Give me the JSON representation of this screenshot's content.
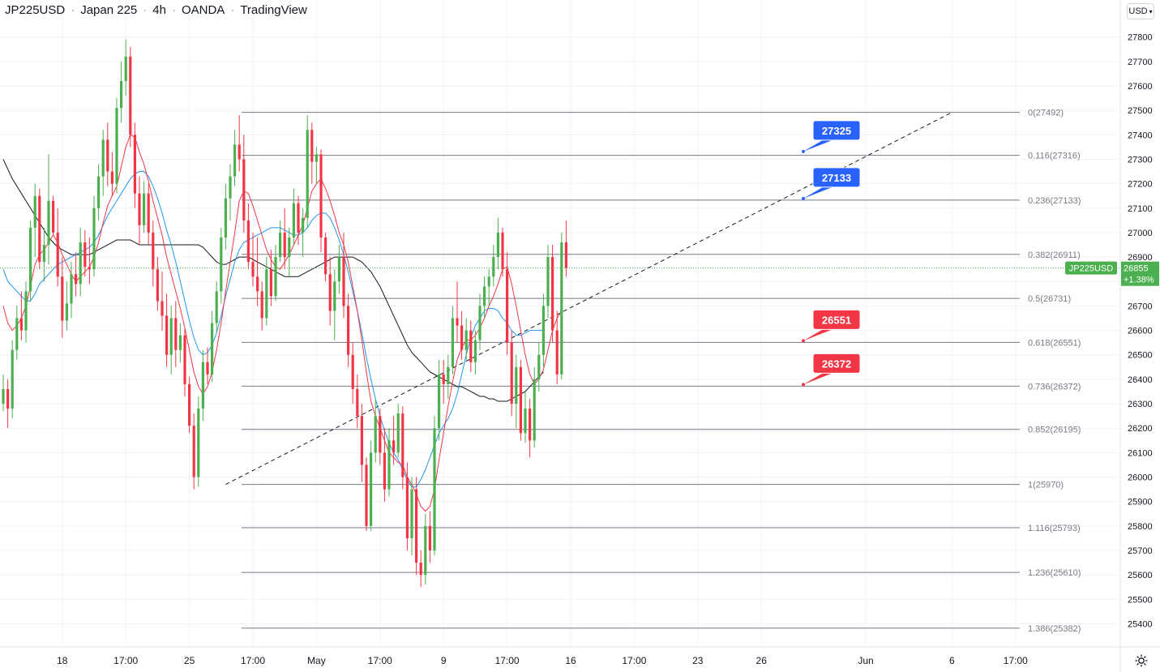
{
  "header": {
    "symbol": "JP225USD",
    "name": "Japan 225",
    "interval": "4h",
    "broker": "OANDA",
    "source": "TradingView"
  },
  "currency_button": {
    "label": "USD",
    "icon": "chevron-down-icon"
  },
  "settings_icon": "gear-icon",
  "colors": {
    "up": "#4caf50",
    "down": "#f23645",
    "sma_fast": "#f23645",
    "sma_mid": "#2196f3",
    "sma_slow": "#131722",
    "label_blue": "#2962ff",
    "label_red": "#f23645",
    "price_badge": "#4caf50"
  },
  "chart_data": {
    "type": "candlestick",
    "y_ticks": [
      27800,
      27700,
      27600,
      27500,
      27400,
      27300,
      27200,
      27100,
      27000,
      26900,
      26800,
      26700,
      26600,
      26500,
      26400,
      26300,
      26200,
      26100,
      26000,
      25900,
      25800,
      25700,
      25600,
      25500,
      25400
    ],
    "ylim": [
      25332,
      27852
    ],
    "x_ticks": [
      {
        "label": "18",
        "bar": 13
      },
      {
        "label": "17:00",
        "bar": 27
      },
      {
        "label": "25",
        "bar": 41
      },
      {
        "label": "17:00",
        "bar": 55
      },
      {
        "label": "May",
        "bar": 69
      },
      {
        "label": "17:00",
        "bar": 83
      },
      {
        "label": "9",
        "bar": 97
      },
      {
        "label": "17:00",
        "bar": 111
      },
      {
        "label": "16",
        "bar": 125
      },
      {
        "label": "17:00",
        "bar": 139
      },
      {
        "label": "23",
        "bar": 153
      },
      {
        "label": "26",
        "bar": 167
      },
      {
        "label": "Jun",
        "bar": 190
      },
      {
        "label": "6",
        "bar": 209
      },
      {
        "label": "17:00",
        "bar": 223
      }
    ],
    "last_price": {
      "symbol": "JP225USD",
      "value": "26855",
      "change": "+1.38%"
    },
    "fibonacci": [
      {
        "label": "0(27492)",
        "value": 27492
      },
      {
        "label": "0.116(27316)",
        "value": 27316
      },
      {
        "label": "0.236(27133)",
        "value": 27133
      },
      {
        "label": "0.382(26911)",
        "value": 26911
      },
      {
        "label": "0.5(26731)",
        "value": 26731
      },
      {
        "label": "0.618(26551)",
        "value": 26551
      },
      {
        "label": "0.736(26372)",
        "value": 26372
      },
      {
        "label": "0.852(26195)",
        "value": 26195
      },
      {
        "label": "1(25970)",
        "value": 25970
      },
      {
        "label": "1.116(25793)",
        "value": 25793
      },
      {
        "label": "1.236(25610)",
        "value": 25610
      },
      {
        "label": "1.386(25382)",
        "value": 25382
      }
    ],
    "callouts": [
      {
        "text": "27325",
        "value": 27325,
        "color": "blue"
      },
      {
        "text": "27133",
        "value": 27133,
        "color": "blue"
      },
      {
        "text": "26551",
        "value": 26551,
        "color": "red"
      },
      {
        "text": "26372",
        "value": 26372,
        "color": "red"
      }
    ],
    "trendline": {
      "from": {
        "bar": 49,
        "value": 25970
      },
      "to": {
        "bar": 209,
        "value": 27492
      }
    },
    "candles": [
      [
        26300,
        26420,
        26270,
        26360
      ],
      [
        26360,
        26400,
        26200,
        26280
      ],
      [
        26280,
        26560,
        26240,
        26520
      ],
      [
        26520,
        26700,
        26480,
        26650
      ],
      [
        26650,
        26760,
        26560,
        26600
      ],
      [
        26600,
        26800,
        26550,
        26760
      ],
      [
        26760,
        27050,
        26720,
        27020
      ],
      [
        27020,
        27200,
        26900,
        27150
      ],
      [
        27150,
        27180,
        26850,
        26880
      ],
      [
        26880,
        27020,
        26800,
        26950
      ],
      [
        26950,
        27320,
        26870,
        27130
      ],
      [
        27130,
        27150,
        26990,
        27000
      ],
      [
        27000,
        27100,
        26780,
        26820
      ],
      [
        26820,
        26900,
        26570,
        26640
      ],
      [
        26640,
        26800,
        26600,
        26710
      ],
      [
        26710,
        26880,
        26650,
        26830
      ],
      [
        26830,
        26920,
        26740,
        26790
      ],
      [
        26790,
        27020,
        26740,
        26960
      ],
      [
        26960,
        27010,
        26820,
        26860
      ],
      [
        26860,
        26980,
        26790,
        26850
      ],
      [
        26850,
        27150,
        26820,
        27100
      ],
      [
        27100,
        27280,
        27050,
        27230
      ],
      [
        27230,
        27420,
        27150,
        27380
      ],
      [
        27380,
        27450,
        27190,
        27250
      ],
      [
        27250,
        27330,
        27150,
        27200
      ],
      [
        27200,
        27550,
        27160,
        27510
      ],
      [
        27510,
        27700,
        27450,
        27620
      ],
      [
        27620,
        27790,
        27560,
        27720
      ],
      [
        27720,
        27760,
        27350,
        27400
      ],
      [
        27400,
        27450,
        27100,
        27160
      ],
      [
        27160,
        27230,
        26950,
        27030
      ],
      [
        27030,
        27210,
        27000,
        27160
      ],
      [
        27160,
        27200,
        26950,
        27000
      ],
      [
        27000,
        27050,
        26780,
        26850
      ],
      [
        26850,
        26900,
        26680,
        26720
      ],
      [
        26720,
        26840,
        26600,
        26660
      ],
      [
        26660,
        26750,
        26450,
        26500
      ],
      [
        26500,
        26700,
        26420,
        26650
      ],
      [
        26650,
        26720,
        26450,
        26520
      ],
      [
        26520,
        26630,
        26470,
        26580
      ],
      [
        26580,
        26610,
        26330,
        26380
      ],
      [
        26380,
        26410,
        26180,
        26210
      ],
      [
        26210,
        26260,
        25950,
        26000
      ],
      [
        26000,
        26330,
        25960,
        26280
      ],
      [
        26280,
        26520,
        26230,
        26470
      ],
      [
        26470,
        26530,
        26380,
        26420
      ],
      [
        26420,
        26680,
        26390,
        26630
      ],
      [
        26630,
        26800,
        26590,
        26760
      ],
      [
        26760,
        27020,
        26710,
        26980
      ],
      [
        26980,
        27200,
        26930,
        27140
      ],
      [
        27140,
        27280,
        27050,
        27230
      ],
      [
        27230,
        27420,
        27190,
        27360
      ],
      [
        27360,
        27480,
        27250,
        27300
      ],
      [
        27300,
        27400,
        27000,
        27050
      ],
      [
        27050,
        27120,
        26850,
        26880
      ],
      [
        26880,
        27000,
        26780,
        26820
      ],
      [
        26820,
        26980,
        26700,
        26760
      ],
      [
        26760,
        26800,
        26600,
        26650
      ],
      [
        26650,
        26900,
        26620,
        26850
      ],
      [
        26850,
        26930,
        26700,
        26740
      ],
      [
        26740,
        26950,
        26720,
        26900
      ],
      [
        26900,
        27050,
        26880,
        27000
      ],
      [
        27000,
        27100,
        26850,
        26900
      ],
      [
        26900,
        27020,
        26820,
        26980
      ],
      [
        26980,
        27180,
        26950,
        27120
      ],
      [
        27120,
        27150,
        26950,
        27000
      ],
      [
        27000,
        27100,
        26900,
        27060
      ],
      [
        27060,
        27480,
        27020,
        27420
      ],
      [
        27420,
        27450,
        27200,
        27290
      ],
      [
        27290,
        27350,
        27200,
        27320
      ],
      [
        27320,
        27340,
        26920,
        26980
      ],
      [
        26980,
        27000,
        26800,
        26830
      ],
      [
        26830,
        26900,
        26620,
        26680
      ],
      [
        26680,
        26850,
        26560,
        26800
      ],
      [
        26800,
        26950,
        26750,
        26900
      ],
      [
        26900,
        27000,
        26650,
        26700
      ],
      [
        26700,
        26750,
        26450,
        26500
      ],
      [
        26500,
        26550,
        26300,
        26360
      ],
      [
        26360,
        26420,
        26200,
        26250
      ],
      [
        26250,
        26300,
        25980,
        26050
      ],
      [
        26050,
        26080,
        25780,
        25800
      ],
      [
        25800,
        26150,
        25780,
        26100
      ],
      [
        26100,
        26320,
        26060,
        26250
      ],
      [
        26250,
        26280,
        26050,
        26100
      ],
      [
        26100,
        26200,
        25900,
        25950
      ],
      [
        25950,
        26200,
        25920,
        26150
      ],
      [
        26150,
        26250,
        26050,
        26100
      ],
      [
        26100,
        26300,
        26080,
        26260
      ],
      [
        26260,
        26290,
        25950,
        26000
      ],
      [
        26000,
        26060,
        25700,
        25750
      ],
      [
        25750,
        26000,
        25680,
        25950
      ],
      [
        25950,
        26000,
        25600,
        25650
      ],
      [
        25650,
        25700,
        25550,
        25600
      ],
      [
        25600,
        25850,
        25560,
        25800
      ],
      [
        25800,
        25860,
        25650,
        25700
      ],
      [
        25700,
        26250,
        25680,
        26200
      ],
      [
        26200,
        26480,
        26150,
        26420
      ],
      [
        26420,
        26480,
        26300,
        26380
      ],
      [
        26380,
        26500,
        26320,
        26450
      ],
      [
        26450,
        26700,
        26420,
        26650
      ],
      [
        26650,
        26800,
        26550,
        26620
      ],
      [
        26620,
        26680,
        26480,
        26520
      ],
      [
        26520,
        26650,
        26480,
        26600
      ],
      [
        26600,
        26640,
        26430,
        26470
      ],
      [
        26470,
        26600,
        26420,
        26560
      ],
      [
        26560,
        26750,
        26520,
        26700
      ],
      [
        26700,
        26820,
        26650,
        26780
      ],
      [
        26780,
        26850,
        26700,
        26820
      ],
      [
        26820,
        26950,
        26780,
        26900
      ],
      [
        26900,
        27060,
        26850,
        27000
      ],
      [
        27000,
        27020,
        26820,
        26850
      ],
      [
        26850,
        26920,
        26500,
        26550
      ],
      [
        26550,
        26600,
        26250,
        26300
      ],
      [
        26300,
        26500,
        26200,
        26450
      ],
      [
        26450,
        26480,
        26150,
        26180
      ],
      [
        26180,
        26350,
        26140,
        26280
      ],
      [
        26280,
        26320,
        26080,
        26150
      ],
      [
        26150,
        26450,
        26120,
        26400
      ],
      [
        26400,
        26550,
        26350,
        26500
      ],
      [
        26500,
        26750,
        26450,
        26700
      ],
      [
        26700,
        26950,
        26650,
        26900
      ],
      [
        26900,
        26950,
        26550,
        26600
      ],
      [
        26600,
        26680,
        26380,
        26420
      ],
      [
        26420,
        27000,
        26400,
        26960
      ],
      [
        26960,
        27050,
        26820,
        26855
      ]
    ],
    "sma_fast_values": [
      26700,
      26630,
      26600,
      26620,
      26650,
      26700,
      26780,
      26870,
      26910,
      26930,
      26960,
      26990,
      26960,
      26910,
      26870,
      26830,
      26800,
      26820,
      26840,
      26860,
      26900,
      26960,
      27040,
      27110,
      27150,
      27190,
      27270,
      27350,
      27400,
      27390,
      27330,
      27280,
      27210,
      27130,
      27060,
      26990,
      26900,
      26830,
      26760,
      26690,
      26610,
      26520,
      26430,
      26370,
      26340,
      26370,
      26430,
      26520,
      26630,
      26760,
      26880,
      27000,
      27130,
      27170,
      27160,
      27110,
      27050,
      26990,
      26930,
      26890,
      26860,
      26850,
      26880,
      26910,
      26950,
      26990,
      27030,
      27100,
      27170,
      27200,
      27220,
      27180,
      27130,
      27070,
      27000,
      26950,
      26880,
      26780,
      26680,
      26560,
      26430,
      26310,
      26250,
      26200,
      26150,
      26100,
      26080,
      26060,
      26050,
      26000,
      25970,
      25930,
      25880,
      25860,
      25880,
      25950,
      26070,
      26180,
      26290,
      26390,
      26480,
      26530,
      26560,
      26560,
      26580,
      26610,
      26650,
      26700,
      26740,
      26790,
      26850,
      26860,
      26790,
      26700,
      26600,
      26500,
      26420,
      26380,
      26400,
      26440,
      26520,
      26600,
      26650,
      26680
    ],
    "sma_mid_values": [
      26850,
      26800,
      26780,
      26760,
      26740,
      26720,
      26720,
      26750,
      26790,
      26810,
      26830,
      26850,
      26870,
      26880,
      26890,
      26900,
      26910,
      26920,
      26930,
      26940,
      26960,
      26990,
      27030,
      27070,
      27100,
      27130,
      27160,
      27190,
      27220,
      27240,
      27250,
      27250,
      27230,
      27190,
      27140,
      27080,
      27010,
      26950,
      26880,
      26800,
      26720,
      26640,
      26570,
      26520,
      26500,
      26510,
      26540,
      26590,
      26660,
      26740,
      26810,
      26880,
      26930,
      26960,
      26970,
      26980,
      26990,
      27000,
      27010,
      27020,
      27020,
      27020,
      27010,
      27000,
      26990,
      26990,
      27000,
      27020,
      27050,
      27070,
      27080,
      27080,
      27060,
      27020,
      26970,
      26910,
      26840,
      26760,
      26680,
      26590,
      26490,
      26400,
      26320,
      26250,
      26190,
      26140,
      26100,
      26070,
      26030,
      25990,
      25960,
      25960,
      25990,
      26030,
      26080,
      26130,
      26180,
      26210,
      26240,
      26280,
      26340,
      26420,
      26500,
      26570,
      26620,
      26650,
      26680,
      26690,
      26690,
      26680,
      26650,
      26630,
      26600,
      26580,
      26580,
      26590,
      26600,
      26600,
      26600,
      26600
    ],
    "sma_slow_values": [
      27300,
      27260,
      27220,
      27190,
      27160,
      27130,
      27100,
      27070,
      27040,
      27010,
      26980,
      26960,
      26940,
      26930,
      26920,
      26910,
      26910,
      26910,
      26910,
      26910,
      26920,
      26930,
      26940,
      26950,
      26960,
      26970,
      26970,
      26970,
      26970,
      26960,
      26950,
      26950,
      26950,
      26950,
      26950,
      26950,
      26950,
      26950,
      26950,
      26950,
      26950,
      26950,
      26950,
      26950,
      26940,
      26920,
      26900,
      26880,
      26870,
      26870,
      26880,
      26890,
      26900,
      26900,
      26900,
      26890,
      26880,
      26870,
      26860,
      26850,
      26840,
      26830,
      26820,
      26820,
      26820,
      26820,
      26830,
      26840,
      26850,
      26860,
      26870,
      26880,
      26890,
      26900,
      26900,
      26900,
      26900,
      26900,
      26890,
      26880,
      26860,
      26840,
      26810,
      26780,
      26740,
      26700,
      26660,
      26620,
      26580,
      26540,
      26510,
      26490,
      26470,
      26450,
      26430,
      26420,
      26410,
      26400,
      26390,
      26380,
      26370,
      26370,
      26360,
      26350,
      26340,
      26330,
      26330,
      26320,
      26320,
      26310,
      26310,
      26310,
      26320,
      26330,
      26340,
      26350,
      26370,
      26390,
      26410,
      26430
    ]
  }
}
